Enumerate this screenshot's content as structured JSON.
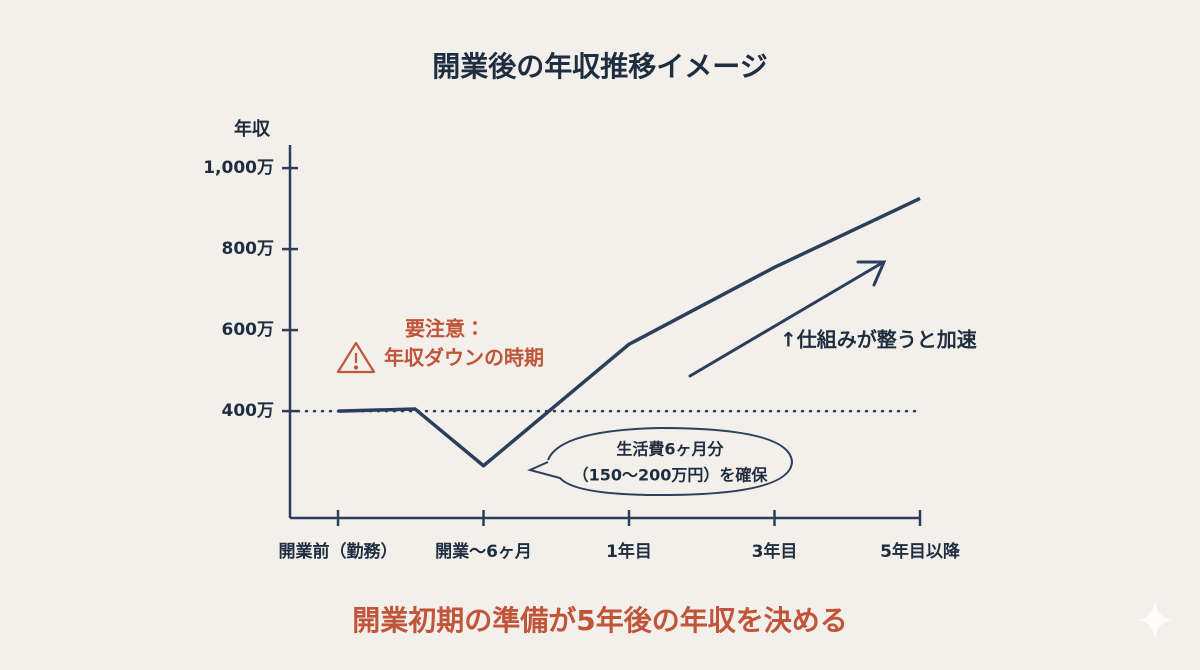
{
  "chart_data": {
    "type": "line",
    "title": "開業後の年収推移イメージ",
    "y_label": "年収",
    "x": [
      0,
      0.53,
      1,
      2,
      3,
      4
    ],
    "series": [
      {
        "name": "年収",
        "color": "#2b3f5c",
        "values": [
          400,
          405,
          265,
          565,
          755,
          925
        ]
      }
    ],
    "xlim": [
      -0.33,
      4
    ],
    "xticks": [
      {
        "value": 0,
        "label": "開業前（勤務）"
      },
      {
        "value": 1,
        "label": "開業〜6ヶ月"
      },
      {
        "value": 2,
        "label": "1年目"
      },
      {
        "value": 3,
        "label": "3年目"
      },
      {
        "value": 4,
        "label": "5年目以降"
      }
    ],
    "ylim": [
      136,
      1057
    ],
    "yticks": [
      {
        "value": 400,
        "label": "400万"
      },
      {
        "value": 600,
        "label": "600万"
      },
      {
        "value": 800,
        "label": "800万"
      },
      {
        "value": 1000,
        "label": "1,000万"
      }
    ],
    "reference_line": 400,
    "annotations": [
      "要注意：",
      "年収ダウンの時期",
      "生活費6ヶ月分",
      "（150〜200万円）を確保",
      "↑仕組みが整うと加速"
    ],
    "footer": "開業初期の準備が5年後の年収を決める"
  }
}
